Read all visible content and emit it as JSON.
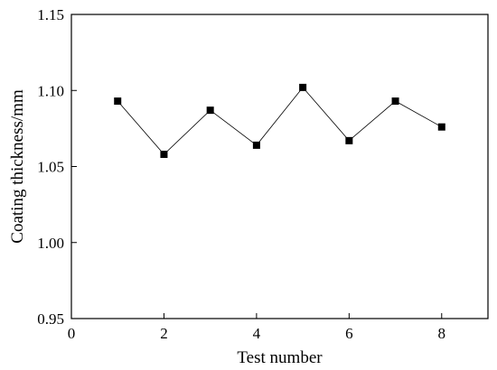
{
  "chart_data": {
    "type": "line",
    "xlabel": "Test number",
    "ylabel": "Coating thickness/mm",
    "xlim": [
      0,
      9
    ],
    "ylim": [
      0.95,
      1.15
    ],
    "xticks": [
      0,
      2,
      4,
      6,
      8
    ],
    "xtick_labels": [
      "0",
      "2",
      "4",
      "6",
      "8"
    ],
    "yticks": [
      0.95,
      1.0,
      1.05,
      1.1,
      1.15
    ],
    "ytick_labels": [
      "0.95",
      "1.00",
      "1.05",
      "1.10",
      "1.15"
    ],
    "grid": false,
    "marker": "square",
    "series": [
      {
        "x": [
          1,
          2,
          3,
          4,
          5,
          6,
          7,
          8
        ],
        "values": [
          1.093,
          1.058,
          1.087,
          1.064,
          1.102,
          1.067,
          1.093,
          1.076
        ]
      }
    ]
  }
}
